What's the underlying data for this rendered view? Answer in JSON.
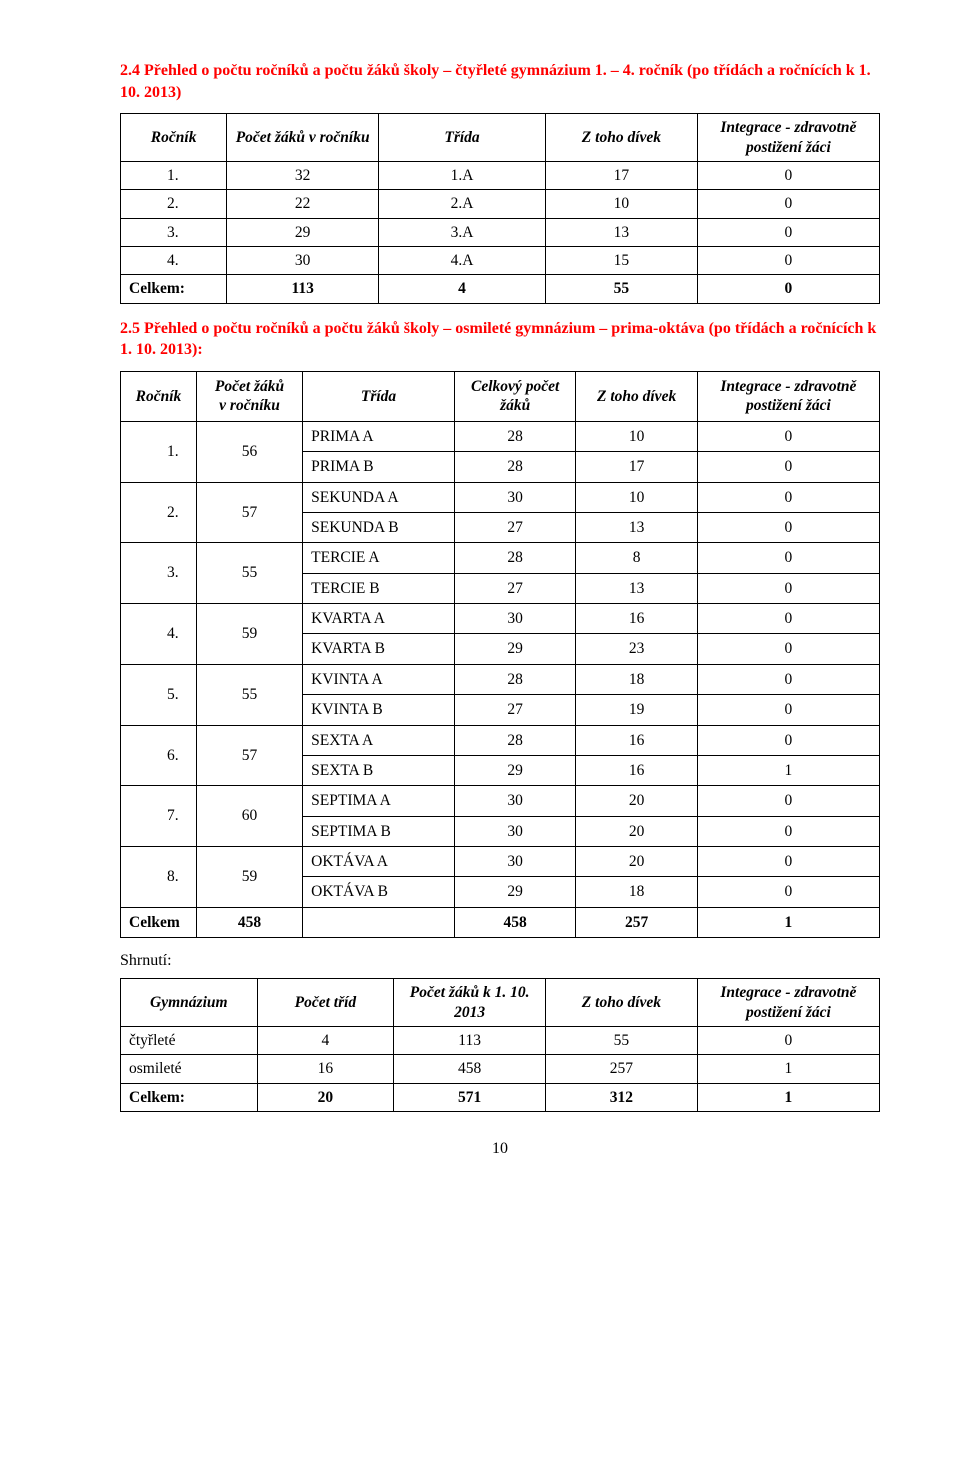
{
  "section24": {
    "heading": "2.4 Přehled o počtu ročníků a počtu žáků školy – čtyřleté gymnázium 1. – 4. ročník (po třídách a ročnících k 1. 10. 2013)",
    "headers": {
      "rocnik": "Ročník",
      "pocet_zaku": "Počet žáků v ročníku",
      "trida": "Třída",
      "z_toho_divek": "Z toho dívek",
      "integrace": "Integrace - zdravotně postižení žáci"
    },
    "rows": [
      {
        "rocnik": "1.",
        "pocet": "32",
        "trida": "1.A",
        "divek": "17",
        "int": "0"
      },
      {
        "rocnik": "2.",
        "pocet": "22",
        "trida": "2.A",
        "divek": "10",
        "int": "0"
      },
      {
        "rocnik": "3.",
        "pocet": "29",
        "trida": "3.A",
        "divek": "13",
        "int": "0"
      },
      {
        "rocnik": "4.",
        "pocet": "30",
        "trida": "4.A",
        "divek": "15",
        "int": "0"
      }
    ],
    "total": {
      "label": "Celkem:",
      "pocet": "113",
      "trida": "4",
      "divek": "55",
      "int": "0"
    }
  },
  "section25": {
    "heading": "2.5 Přehled o počtu ročníků a počtu žáků školy – osmileté gymnázium – prima-oktáva (po třídách a ročnících k 1. 10. 2013):",
    "headers": {
      "rocnik": "Ročník",
      "pocet_zaku": "Počet žáků v ročníku",
      "trida": "Třída",
      "celkovy": "Celkový počet žáků",
      "z_toho_divek": "Z toho dívek",
      "integrace": "Integrace - zdravotně postižení žáci"
    },
    "groups": [
      {
        "rocnik": "1.",
        "pocet": "56",
        "sub": [
          {
            "trida": "PRIMA A",
            "celk": "28",
            "div": "10",
            "int": "0"
          },
          {
            "trida": "PRIMA B",
            "celk": "28",
            "div": "17",
            "int": "0"
          }
        ]
      },
      {
        "rocnik": "2.",
        "pocet": "57",
        "sub": [
          {
            "trida": "SEKUNDA A",
            "celk": "30",
            "div": "10",
            "int": "0"
          },
          {
            "trida": "SEKUNDA B",
            "celk": "27",
            "div": "13",
            "int": "0"
          }
        ]
      },
      {
        "rocnik": "3.",
        "pocet": "55",
        "sub": [
          {
            "trida": "TERCIE A",
            "celk": "28",
            "div": "8",
            "int": "0"
          },
          {
            "trida": "TERCIE B",
            "celk": "27",
            "div": "13",
            "int": "0"
          }
        ]
      },
      {
        "rocnik": "4.",
        "pocet": "59",
        "sub": [
          {
            "trida": "KVARTA A",
            "celk": "30",
            "div": "16",
            "int": "0"
          },
          {
            "trida": "KVARTA B",
            "celk": "29",
            "div": "23",
            "int": "0"
          }
        ]
      },
      {
        "rocnik": "5.",
        "pocet": "55",
        "sub": [
          {
            "trida": "KVINTA A",
            "celk": "28",
            "div": "18",
            "int": "0"
          },
          {
            "trida": "KVINTA B",
            "celk": "27",
            "div": "19",
            "int": "0"
          }
        ]
      },
      {
        "rocnik": "6.",
        "pocet": "57",
        "sub": [
          {
            "trida": "SEXTA A",
            "celk": "28",
            "div": "16",
            "int": "0"
          },
          {
            "trida": "SEXTA B",
            "celk": "29",
            "div": "16",
            "int": "1"
          }
        ]
      },
      {
        "rocnik": "7.",
        "pocet": "60",
        "sub": [
          {
            "trida": "SEPTIMA A",
            "celk": "30",
            "div": "20",
            "int": "0"
          },
          {
            "trida": "SEPTIMA B",
            "celk": "30",
            "div": "20",
            "int": "0"
          }
        ]
      },
      {
        "rocnik": "8.",
        "pocet": "59",
        "sub": [
          {
            "trida": "OKTÁVA A",
            "celk": "30",
            "div": "20",
            "int": "0"
          },
          {
            "trida": "OKTÁVA B",
            "celk": "29",
            "div": "18",
            "int": "0"
          }
        ]
      }
    ],
    "total": {
      "label": "Celkem",
      "pocet": "458",
      "trida": "",
      "celk": "458",
      "div": "257",
      "int": "1"
    }
  },
  "summary": {
    "label": "Shrnutí:",
    "headers": {
      "gymnazium": "Gymnázium",
      "pocet_trid": "Počet tříd",
      "pocet_zaku": "Počet žáků k 1. 10. 2013",
      "z_toho_divek": "Z toho dívek",
      "integrace": "Integrace - zdravotně postižení žáci"
    },
    "rows": [
      {
        "g": "čtyřleté",
        "t": "4",
        "z": "113",
        "d": "55",
        "i": "0"
      },
      {
        "g": "osmileté",
        "t": "16",
        "z": "458",
        "d": "257",
        "i": "1"
      }
    ],
    "total": {
      "label": "Celkem:",
      "t": "20",
      "z": "571",
      "d": "312",
      "i": "1"
    }
  },
  "page_number": "10"
}
